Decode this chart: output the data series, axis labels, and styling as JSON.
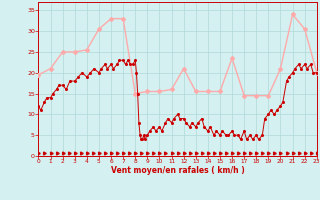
{
  "xlabel": "Vent moyen/en rafales ( km/h )",
  "bg_color": "#d4f0f0",
  "grid_color": "#b0d8d8",
  "line1_color": "#ffaaaa",
  "line2_color": "#cc0000",
  "ylim": [
    0,
    37
  ],
  "xlim": [
    0,
    23
  ],
  "yticks": [
    0,
    5,
    10,
    15,
    20,
    25,
    30,
    35
  ],
  "xticks": [
    0,
    1,
    2,
    3,
    4,
    5,
    6,
    7,
    8,
    9,
    10,
    11,
    12,
    13,
    14,
    15,
    16,
    17,
    18,
    19,
    20,
    21,
    22,
    23
  ],
  "rafales_x": [
    0,
    1,
    2,
    3,
    4,
    5,
    6,
    7,
    8,
    9,
    10,
    11,
    12,
    13,
    14,
    15,
    16,
    17,
    18,
    19,
    20,
    21,
    22,
    23
  ],
  "rafales_y": [
    19.5,
    21,
    25,
    25,
    25.5,
    30.5,
    33,
    33,
    15,
    15.5,
    15.5,
    16,
    21,
    15.5,
    15.5,
    15.5,
    23.5,
    14.5,
    14.5,
    14.5,
    21,
    34,
    30.5,
    20
  ],
  "vent_x": [
    0,
    0.2,
    0.5,
    0.7,
    1,
    1.2,
    1.5,
    1.7,
    2,
    2.3,
    2.6,
    3,
    3.3,
    3.6,
    4,
    4.3,
    4.6,
    5,
    5.2,
    5.5,
    5.7,
    6,
    6.2,
    6.5,
    6.7,
    7,
    7.2,
    7.4,
    7.6,
    7.8,
    8,
    8.1,
    8.2,
    8.3,
    8.4,
    8.5,
    8.6,
    8.7,
    8.8,
    9,
    9.2,
    9.5,
    9.7,
    10,
    10.2,
    10.5,
    10.7,
    11,
    11.2,
    11.5,
    11.7,
    12,
    12.2,
    12.5,
    12.7,
    13,
    13.2,
    13.5,
    13.7,
    14,
    14.2,
    14.5,
    14.7,
    15,
    15.2,
    15.5,
    15.7,
    16,
    16.2,
    16.5,
    16.7,
    17,
    17.2,
    17.5,
    17.7,
    18,
    18.2,
    18.5,
    18.7,
    19,
    19.2,
    19.5,
    19.7,
    20,
    20.2,
    20.5,
    20.7,
    21,
    21.2,
    21.5,
    21.7,
    22,
    22.2,
    22.5,
    22.7,
    23
  ],
  "vent_y": [
    12,
    11,
    13,
    14,
    14,
    15,
    16,
    17,
    17,
    16,
    18,
    18,
    19,
    20,
    19,
    20,
    21,
    20,
    21,
    22,
    21,
    22,
    21,
    22,
    23,
    23,
    22,
    23,
    22,
    22,
    23,
    20,
    15,
    8,
    5,
    4,
    4,
    5,
    4,
    5,
    6,
    7,
    6,
    7,
    6,
    8,
    9,
    8,
    9,
    10,
    9,
    9,
    8,
    7,
    8,
    7,
    8,
    9,
    7,
    6,
    7,
    5,
    6,
    5,
    6,
    5,
    5,
    6,
    5,
    5,
    4,
    6,
    4,
    5,
    4,
    5,
    4,
    5,
    9,
    10,
    11,
    10,
    11,
    12,
    13,
    18,
    19,
    20,
    21,
    22,
    21,
    22,
    21,
    22,
    20,
    20
  ],
  "dir_x": [
    0,
    0.5,
    1,
    1.5,
    2,
    2.5,
    3,
    3.5,
    4,
    4.5,
    5,
    5.5,
    6,
    6.5,
    7,
    7.5,
    8,
    8.5,
    9,
    9.5,
    10,
    10.5,
    11,
    11.5,
    12,
    12.5,
    13,
    13.5,
    14,
    14.5,
    15,
    15.5,
    16,
    16.5,
    17,
    17.5,
    18,
    18.5,
    19,
    19.5,
    20,
    20.5,
    21,
    21.5,
    22,
    22.5,
    23
  ],
  "dir_y": [
    0.8,
    0.8,
    0.8,
    0.8,
    0.8,
    0.8,
    0.8,
    0.8,
    0.8,
    0.8,
    0.8,
    0.8,
    0.8,
    0.8,
    0.8,
    0.8,
    0.8,
    0.8,
    0.8,
    0.8,
    0.8,
    0.8,
    0.8,
    0.8,
    0.8,
    0.8,
    0.8,
    0.8,
    0.8,
    0.8,
    0.8,
    0.8,
    0.8,
    0.8,
    0.8,
    0.8,
    0.8,
    0.8,
    0.8,
    0.8,
    0.8,
    0.8,
    0.8,
    0.8,
    0.8,
    0.8,
    0.8
  ]
}
